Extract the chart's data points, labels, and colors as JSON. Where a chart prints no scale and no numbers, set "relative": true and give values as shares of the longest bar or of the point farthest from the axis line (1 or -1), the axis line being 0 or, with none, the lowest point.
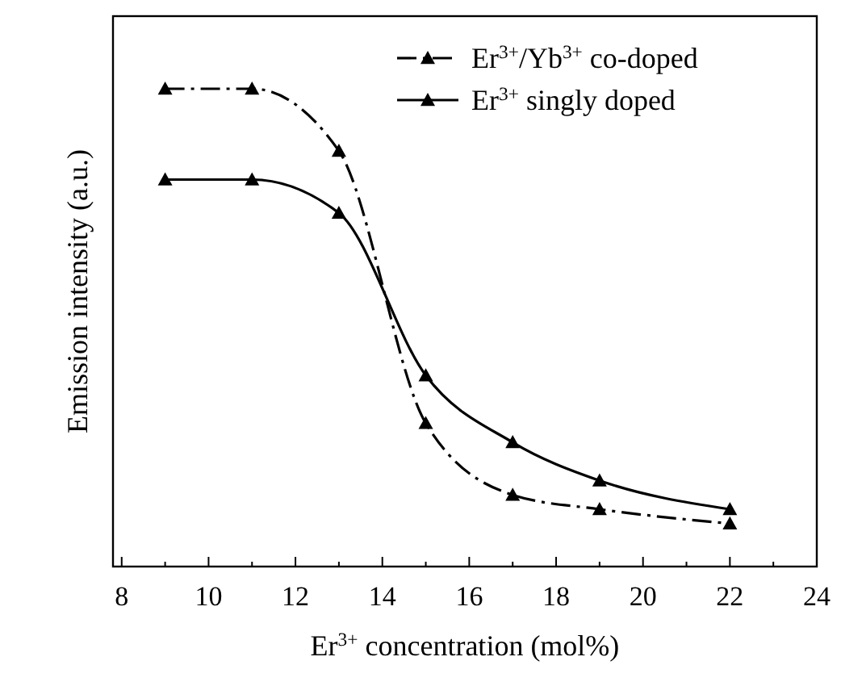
{
  "chart_data": {
    "type": "line",
    "relative": true,
    "xlabel": "Er$^{3+}$ concentration (mol%)",
    "ylabel": "Emission intensity (a.u.)",
    "xlim": [
      7.8,
      24
    ],
    "xticks": [
      8,
      10,
      12,
      14,
      16,
      18,
      20,
      22,
      24
    ],
    "marker": "triangle",
    "legend": "top right",
    "grid": false,
    "series": [
      {
        "name": "Er$^{3+}$/Yb$^{3+}$ co-doped",
        "color": "#000000",
        "line_style": "dashed",
        "x": [
          9,
          11,
          13,
          15,
          17,
          19,
          22
        ],
        "values": [
          1,
          1,
          0.87,
          0.3,
          0.15,
          0.12,
          0.09
        ]
      },
      {
        "name": "Er$^{3+}$ singly doped",
        "color": "#000000",
        "line_style": "solid",
        "x": [
          9,
          11,
          13,
          15,
          17,
          19,
          22
        ],
        "values": [
          0.81,
          0.81,
          0.74,
          0.4,
          0.26,
          0.18,
          0.12
        ]
      }
    ]
  }
}
